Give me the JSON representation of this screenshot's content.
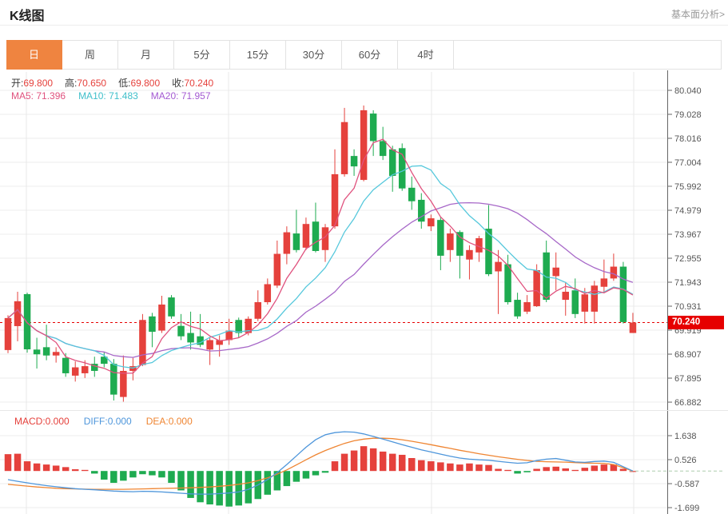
{
  "header": {
    "title": "K线图",
    "link": "基本面分析>"
  },
  "tabs": {
    "items": [
      "日",
      "周",
      "月",
      "5分",
      "15分",
      "30分",
      "60分",
      "4时"
    ],
    "active": "日"
  },
  "ohlc": {
    "open_label": "开:",
    "open": "69.800",
    "high_label": "高:",
    "high": "70.650",
    "low_label": "低:",
    "low": "69.800",
    "close_label": "收:",
    "close": "70.240"
  },
  "ma": {
    "ma5_label": "MA5:",
    "ma5": "71.396",
    "ma10_label": "MA10:",
    "ma10": "71.483",
    "ma20_label": "MA20:",
    "ma20": "71.957"
  },
  "macd_header": {
    "macd_label": "MACD:",
    "macd": "0.000",
    "diff_label": "DIFF:",
    "diff": "0.000",
    "dea_label": "DEA:",
    "dea": "0.000"
  },
  "price_axis": [
    "80.040",
    "79.028",
    "78.016",
    "77.004",
    "75.992",
    "74.979",
    "73.967",
    "72.955",
    "71.943",
    "70.931",
    "69.919",
    "68.907",
    "67.895",
    "66.882"
  ],
  "macd_axis": [
    "1.638",
    "0.526",
    "-0.587",
    "-1.699"
  ],
  "price_tag": "70.240",
  "colors": {
    "up_red": "#e5413c",
    "down_green": "#1eab50",
    "ma5": "#e0527e",
    "ma10": "#56c8dc",
    "ma20": "#a768c8",
    "diff_blue": "#4e96db",
    "dea_orange": "#ef8532",
    "last_price_line": "#e60000",
    "tag_bg": "#e60000",
    "grid": "#ececec",
    "vgrid": "#e8e8e8",
    "axis": "#666",
    "zero_dash": "#aecdae",
    "active_tab": "#ef8440"
  },
  "chart_data": [
    {
      "type": "candlestick",
      "title": "K线图 (日)",
      "legend": [
        "MA5",
        "MA10",
        "MA20"
      ],
      "ylim": [
        66.5,
        80.5
      ],
      "y_ticks": [
        80.04,
        79.028,
        78.016,
        77.004,
        75.992,
        74.979,
        73.967,
        72.955,
        71.943,
        70.931,
        69.919,
        68.907,
        67.895,
        66.882
      ],
      "last_price": 70.24,
      "ma_values": {
        "ma5": 71.396,
        "ma10": 71.483,
        "ma20": 71.957
      },
      "candles_format": [
        "open",
        "high",
        "low",
        "close"
      ],
      "candles": [
        [
          69.08,
          70.55,
          68.95,
          70.43
        ],
        [
          70.09,
          71.54,
          69.45,
          71.14
        ],
        [
          71.44,
          71.5,
          68.97,
          69.11
        ],
        [
          69.1,
          69.6,
          68.3,
          68.9
        ],
        [
          69.2,
          70.15,
          68.65,
          68.85
        ],
        [
          68.85,
          69.2,
          68.55,
          69.0
        ],
        [
          68.75,
          68.95,
          67.95,
          68.1
        ],
        [
          68.0,
          68.6,
          67.75,
          68.35
        ],
        [
          68.1,
          68.65,
          67.9,
          68.4
        ],
        [
          68.5,
          68.8,
          67.95,
          68.2
        ],
        [
          68.8,
          69.0,
          68.35,
          68.5
        ],
        [
          68.5,
          68.7,
          66.95,
          67.2
        ],
        [
          67.1,
          68.85,
          66.9,
          68.2
        ],
        [
          68.2,
          68.75,
          67.8,
          68.4
        ],
        [
          68.45,
          70.6,
          68.4,
          70.35
        ],
        [
          70.5,
          70.65,
          69.2,
          69.85
        ],
        [
          69.9,
          71.37,
          69.8,
          71.0
        ],
        [
          71.3,
          71.4,
          70.4,
          70.5
        ],
        [
          70.1,
          70.6,
          69.5,
          69.66
        ],
        [
          69.8,
          70.7,
          69.1,
          69.4
        ],
        [
          69.66,
          70.6,
          69.2,
          69.3
        ],
        [
          69.1,
          69.6,
          68.45,
          69.5
        ],
        [
          69.3,
          69.7,
          68.8,
          69.5
        ],
        [
          69.5,
          70.4,
          69.3,
          69.9
        ],
        [
          70.35,
          70.45,
          69.6,
          69.8
        ],
        [
          69.8,
          70.5,
          69.7,
          70.4
        ],
        [
          70.4,
          71.6,
          70.3,
          71.1
        ],
        [
          71.1,
          72.1,
          71.0,
          71.86
        ],
        [
          71.8,
          73.7,
          71.7,
          73.14
        ],
        [
          73.14,
          74.3,
          72.7,
          74.05
        ],
        [
          74.0,
          75.0,
          73.2,
          73.3
        ],
        [
          73.4,
          74.67,
          73.3,
          74.4
        ],
        [
          74.5,
          75.3,
          73.2,
          73.26
        ],
        [
          73.3,
          74.4,
          72.8,
          74.26
        ],
        [
          74.3,
          77.55,
          74.2,
          76.5
        ],
        [
          76.5,
          79.3,
          76.4,
          78.7
        ],
        [
          77.27,
          77.55,
          76.43,
          76.83
        ],
        [
          76.26,
          79.4,
          76.2,
          79.2
        ],
        [
          79.06,
          79.2,
          77.27,
          77.9
        ],
        [
          77.9,
          78.5,
          77.1,
          77.27
        ],
        [
          77.55,
          77.7,
          75.76,
          76.43
        ],
        [
          77.6,
          77.8,
          75.8,
          75.9
        ],
        [
          75.93,
          76.4,
          75.0,
          75.36
        ],
        [
          75.42,
          75.7,
          74.2,
          74.5
        ],
        [
          74.3,
          74.8,
          74.1,
          74.64
        ],
        [
          74.57,
          74.7,
          72.45,
          73.06
        ],
        [
          73.3,
          74.2,
          72.8,
          74.0
        ],
        [
          74.06,
          74.13,
          72.1,
          73.06
        ],
        [
          72.9,
          73.5,
          72.06,
          73.3
        ],
        [
          73.2,
          73.9,
          72.8,
          73.8
        ],
        [
          74.2,
          75.2,
          72.2,
          72.28
        ],
        [
          72.4,
          73.3,
          70.6,
          72.8
        ],
        [
          72.7,
          73.1,
          71.0,
          71.1
        ],
        [
          71.2,
          71.5,
          70.4,
          70.5
        ],
        [
          70.7,
          71.4,
          70.6,
          71.1
        ],
        [
          70.93,
          72.7,
          70.9,
          72.45
        ],
        [
          73.2,
          73.7,
          71.1,
          71.2
        ],
        [
          72.2,
          73.2,
          71.6,
          72.56
        ],
        [
          71.2,
          71.95,
          70.53,
          71.54
        ],
        [
          71.6,
          72.1,
          70.43,
          70.6
        ],
        [
          70.7,
          71.7,
          70.2,
          71.43
        ],
        [
          70.7,
          72.0,
          70.2,
          71.8
        ],
        [
          71.75,
          72.9,
          71.5,
          72.1
        ],
        [
          72.1,
          73.15,
          72.0,
          72.6
        ],
        [
          72.6,
          72.8,
          70.2,
          70.26
        ],
        [
          69.8,
          70.65,
          69.8,
          70.24
        ]
      ]
    },
    {
      "type": "bar",
      "title": "MACD",
      "legend": [
        "MACD",
        "DIFF",
        "DEA"
      ],
      "y_ticks": [
        1.638,
        0.526,
        -0.587,
        -1.699
      ],
      "hist": [
        0.78,
        0.8,
        0.45,
        0.35,
        0.3,
        0.25,
        0.18,
        0.08,
        0.05,
        -0.12,
        -0.4,
        -0.55,
        -0.45,
        -0.3,
        -0.15,
        -0.2,
        -0.3,
        -0.55,
        -0.9,
        -1.25,
        -1.45,
        -1.55,
        -1.6,
        -1.65,
        -1.6,
        -1.5,
        -1.3,
        -1.1,
        -0.9,
        -0.7,
        -0.5,
        -0.35,
        -0.2,
        -0.08,
        0.45,
        0.8,
        0.95,
        1.15,
        1.05,
        0.9,
        0.8,
        0.75,
        0.6,
        0.5,
        0.45,
        0.4,
        0.35,
        0.3,
        0.35,
        0.3,
        0.28,
        0.1,
        0.05,
        -0.12,
        -0.06,
        0.1,
        0.18,
        0.2,
        0.12,
        0.05,
        0.15,
        0.25,
        0.3,
        0.3,
        0.1,
        0.0
      ],
      "diff": [
        -0.4,
        -0.48,
        -0.55,
        -0.62,
        -0.68,
        -0.73,
        -0.78,
        -0.82,
        -0.85,
        -0.87,
        -0.9,
        -0.93,
        -0.95,
        -0.96,
        -0.94,
        -0.95,
        -0.97,
        -1.0,
        -1.03,
        -1.06,
        -1.07,
        -1.07,
        -1.05,
        -1.02,
        -0.97,
        -0.85,
        -0.65,
        -0.4,
        -0.08,
        0.3,
        0.7,
        1.1,
        1.45,
        1.68,
        1.78,
        1.82,
        1.8,
        1.72,
        1.6,
        1.48,
        1.35,
        1.22,
        1.1,
        0.98,
        0.88,
        0.78,
        0.68,
        0.6,
        0.55,
        0.52,
        0.5,
        0.45,
        0.4,
        0.36,
        0.38,
        0.48,
        0.55,
        0.58,
        0.5,
        0.42,
        0.4,
        0.44,
        0.46,
        0.4,
        0.2,
        0.0
      ],
      "dea": [
        -0.62,
        -0.66,
        -0.7,
        -0.74,
        -0.77,
        -0.8,
        -0.82,
        -0.83,
        -0.84,
        -0.85,
        -0.85,
        -0.85,
        -0.85,
        -0.84,
        -0.83,
        -0.82,
        -0.81,
        -0.8,
        -0.79,
        -0.78,
        -0.76,
        -0.74,
        -0.71,
        -0.67,
        -0.62,
        -0.55,
        -0.45,
        -0.32,
        -0.15,
        0.05,
        0.28,
        0.52,
        0.75,
        0.95,
        1.12,
        1.28,
        1.4,
        1.48,
        1.52,
        1.52,
        1.5,
        1.45,
        1.38,
        1.3,
        1.22,
        1.13,
        1.05,
        0.96,
        0.88,
        0.8,
        0.73,
        0.66,
        0.6,
        0.54,
        0.49,
        0.45,
        0.43,
        0.42,
        0.41,
        0.39,
        0.37,
        0.36,
        0.35,
        0.3,
        0.15,
        0.0
      ]
    }
  ]
}
